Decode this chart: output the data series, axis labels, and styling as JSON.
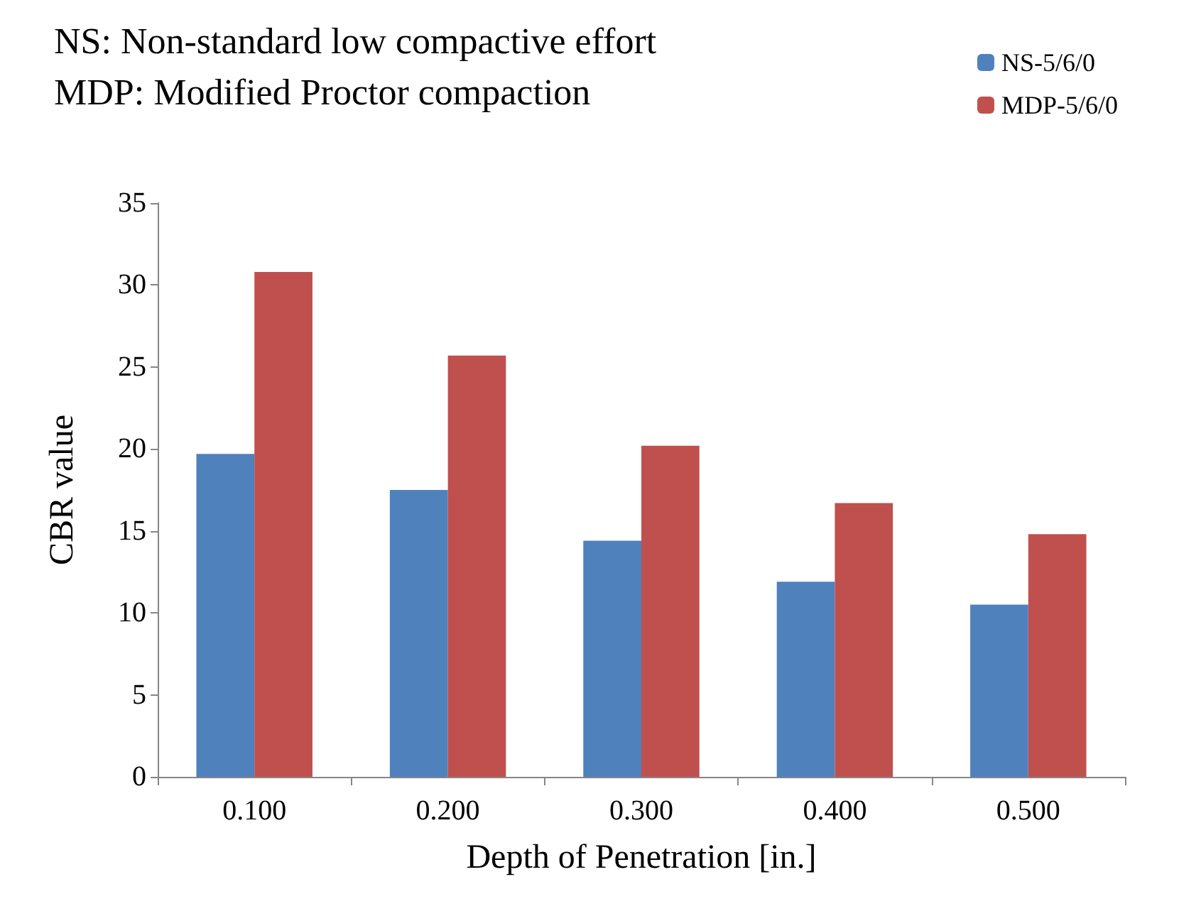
{
  "chart_data": {
    "type": "bar",
    "xlabel": "Depth of Penetration [in.]",
    "ylabel": "CBR value",
    "annotations": [
      "NS: Non-standard low compactive effort",
      "MDP: Modified Proctor compaction"
    ],
    "categories": [
      "0.100",
      "0.200",
      "0.300",
      "0.400",
      "0.500"
    ],
    "series": [
      {
        "name": "NS-5/6/0",
        "color": "#4f81bd",
        "values": [
          19.7,
          17.5,
          14.4,
          11.9,
          10.5
        ]
      },
      {
        "name": "MDP-5/6/0",
        "color": "#c0504d",
        "values": [
          30.8,
          25.7,
          20.2,
          16.7,
          14.8
        ]
      }
    ],
    "ylim": [
      0,
      35
    ],
    "yticks": [
      0,
      5,
      10,
      15,
      20,
      25,
      30,
      35
    ],
    "grid": false,
    "legend": "top right"
  }
}
